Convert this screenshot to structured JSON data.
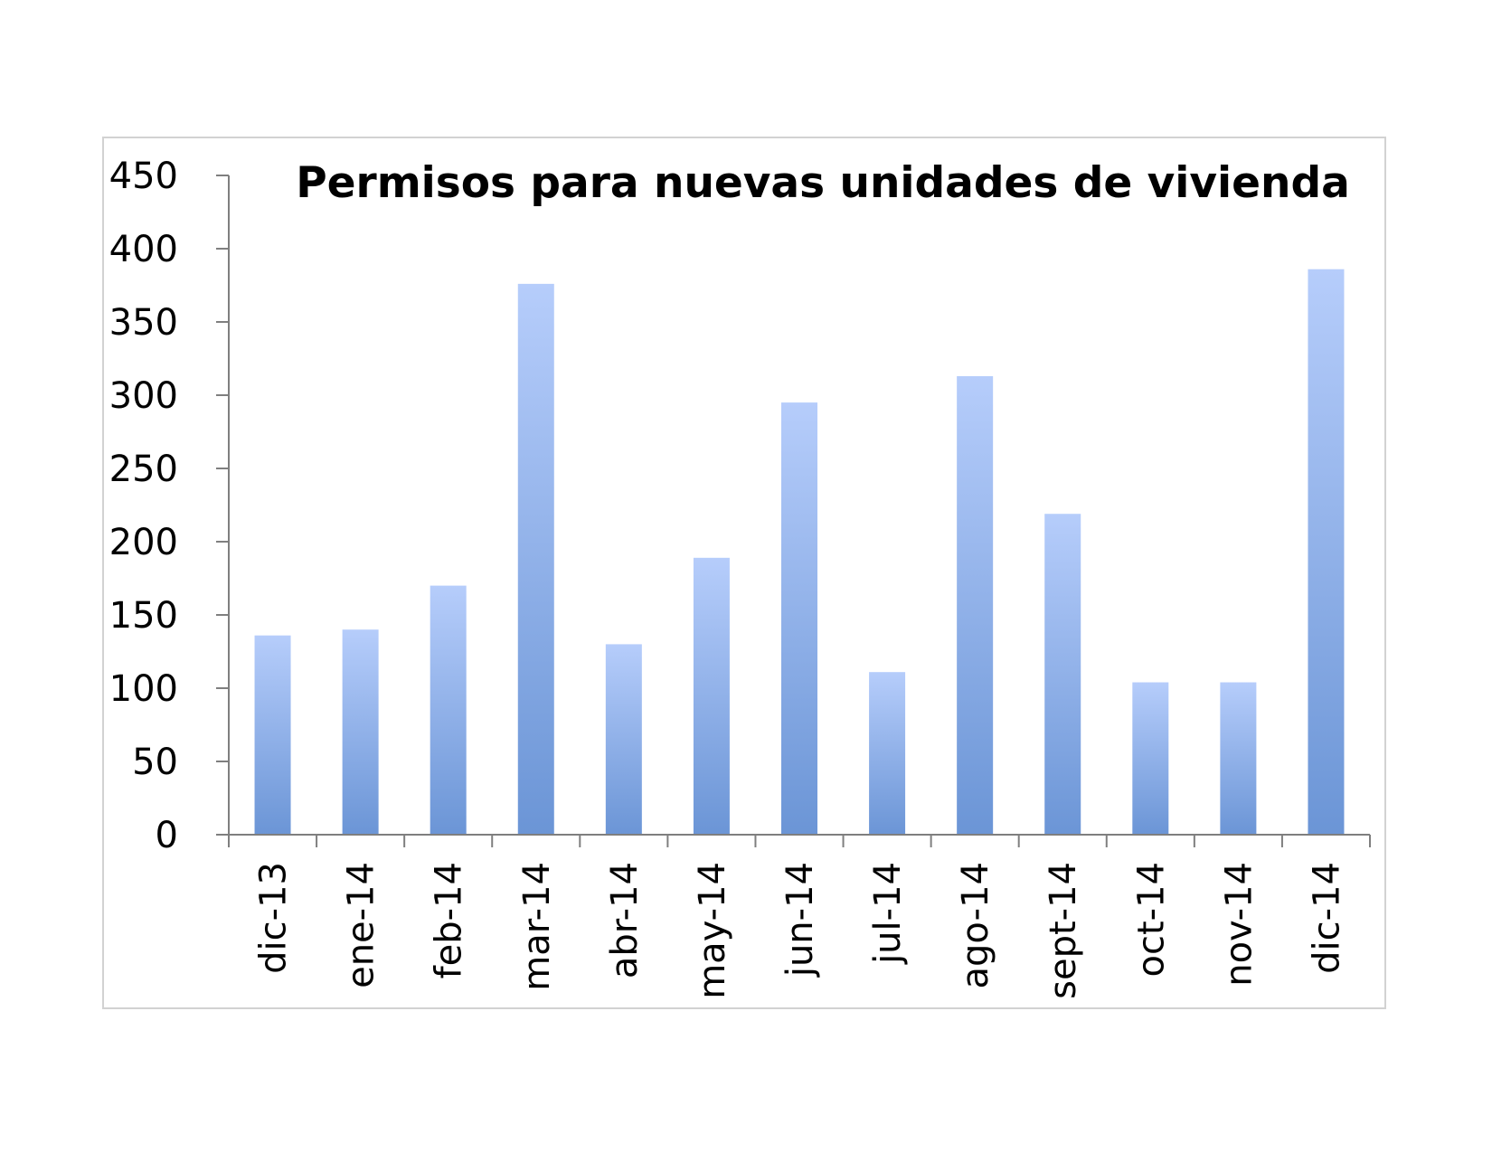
{
  "chart_data": {
    "type": "bar",
    "title": "Permisos para nuevas unidades de vivienda",
    "xlabel": "",
    "ylabel": "",
    "categories": [
      "dic-13",
      "ene-14",
      "feb-14",
      "mar-14",
      "abr-14",
      "may-14",
      "jun-14",
      "jul-14",
      "ago-14",
      "sept-14",
      "oct-14",
      "nov-14",
      "dic-14"
    ],
    "values": [
      136,
      140,
      170,
      376,
      130,
      189,
      295,
      111,
      313,
      219,
      104,
      104,
      386
    ],
    "ylim": [
      0,
      450
    ],
    "yticks": [
      "0",
      "50",
      "100",
      "150",
      "200",
      "250",
      "300",
      "350",
      "400",
      "450"
    ],
    "grid": false,
    "legend": "none",
    "colors": {
      "bar_top": "#b6cdfb",
      "bar_bottom": "#6b95d6",
      "axis": "#7f7f7f",
      "frame": "#d2d2d2"
    }
  }
}
